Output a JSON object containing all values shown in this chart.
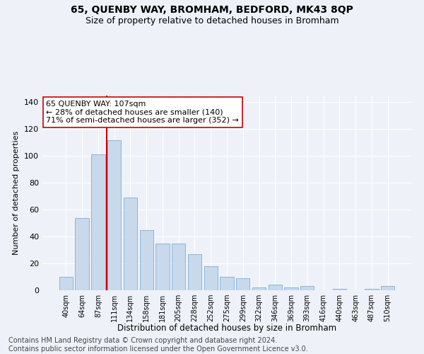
{
  "title": "65, QUENBY WAY, BROMHAM, BEDFORD, MK43 8QP",
  "subtitle": "Size of property relative to detached houses in Bromham",
  "xlabel": "Distribution of detached houses by size in Bromham",
  "ylabel": "Number of detached properties",
  "bar_color": "#c8d9ec",
  "bar_edge_color": "#7bafd4",
  "background_color": "#eef2f8",
  "grid_color": "#ffffff",
  "categories": [
    "40sqm",
    "64sqm",
    "87sqm",
    "111sqm",
    "134sqm",
    "158sqm",
    "181sqm",
    "205sqm",
    "228sqm",
    "252sqm",
    "275sqm",
    "299sqm",
    "322sqm",
    "346sqm",
    "369sqm",
    "393sqm",
    "416sqm",
    "440sqm",
    "463sqm",
    "487sqm",
    "510sqm"
  ],
  "values": [
    10,
    54,
    101,
    112,
    69,
    45,
    35,
    35,
    27,
    18,
    10,
    9,
    2,
    4,
    2,
    3,
    0,
    1,
    0,
    1,
    3
  ],
  "ylim": [
    0,
    145
  ],
  "yticks": [
    0,
    20,
    40,
    60,
    80,
    100,
    120,
    140
  ],
  "vline_x": 2.55,
  "annotation_text": "65 QUENBY WAY: 107sqm\n← 28% of detached houses are smaller (140)\n71% of semi-detached houses are larger (352) →",
  "vline_color": "#cc0000",
  "annotation_box_color": "#ffffff",
  "annotation_box_edge_color": "#cc0000",
  "footer_line1": "Contains HM Land Registry data © Crown copyright and database right 2024.",
  "footer_line2": "Contains public sector information licensed under the Open Government Licence v3.0.",
  "title_fontsize": 10,
  "subtitle_fontsize": 9,
  "footer_fontsize": 7
}
